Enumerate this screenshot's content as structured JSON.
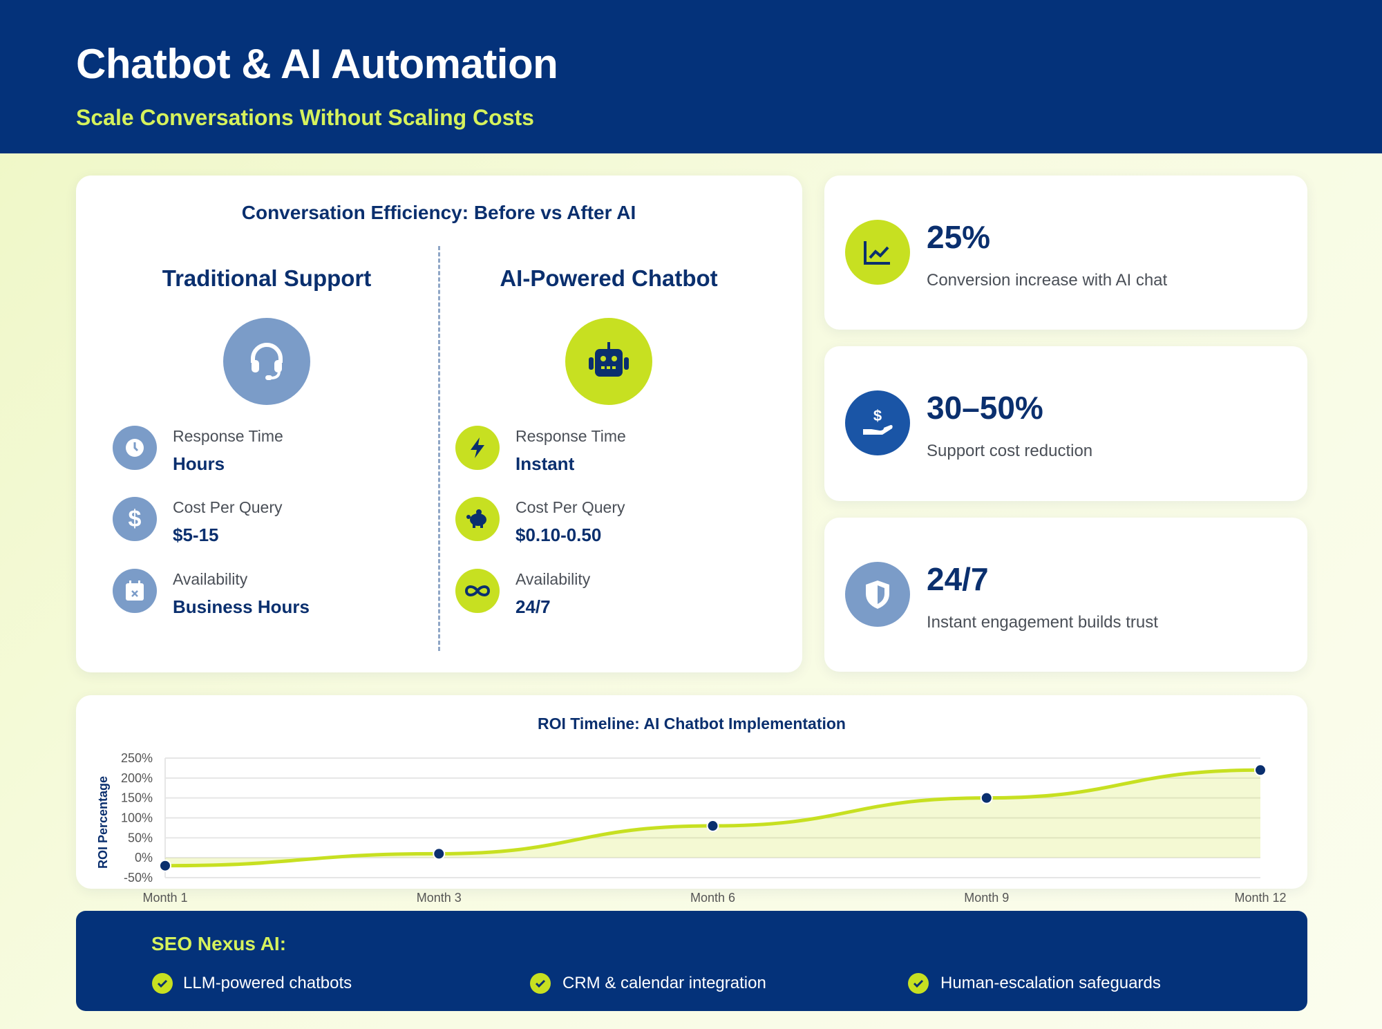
{
  "header": {
    "title": "Chatbot & AI Automation",
    "subtitle": "Scale Conversations Without Scaling Costs"
  },
  "comparison": {
    "title": "Conversation Efficiency: Before vs After AI",
    "traditional": {
      "heading": "Traditional Support",
      "icon": "headset-icon",
      "rows": [
        {
          "icon": "clock-icon",
          "label": "Response Time",
          "value": "Hours"
        },
        {
          "icon": "dollar-icon",
          "label": "Cost Per Query",
          "value": "$5-15"
        },
        {
          "icon": "calendar-x-icon",
          "label": "Availability",
          "value": "Business Hours"
        }
      ]
    },
    "ai": {
      "heading": "AI-Powered Chatbot",
      "icon": "robot-icon",
      "rows": [
        {
          "icon": "lightning-icon",
          "label": "Response Time",
          "value": "Instant"
        },
        {
          "icon": "piggy-bank-icon",
          "label": "Cost Per Query",
          "value": "$0.10-0.50"
        },
        {
          "icon": "infinity-icon",
          "label": "Availability",
          "value": "24/7"
        }
      ]
    }
  },
  "stats": [
    {
      "icon": "chart-line-icon",
      "value": "25%",
      "description": "Conversion increase with AI chat"
    },
    {
      "icon": "hand-dollar-icon",
      "value": "30–50%",
      "description": "Support cost reduction"
    },
    {
      "icon": "shield-icon",
      "value": "24/7",
      "description": "Instant engagement builds trust"
    }
  ],
  "colors": {
    "navy": "#04327a",
    "lime": "#c7e021",
    "steel_blue": "#7b9cc8"
  },
  "chart_data": {
    "type": "area",
    "title": "ROI Timeline: AI Chatbot Implementation",
    "xlabel": "",
    "ylabel": "ROI Percentage",
    "categories": [
      "Month 1",
      "Month 3",
      "Month 6",
      "Month 9",
      "Month 12"
    ],
    "values": [
      -20,
      10,
      80,
      150,
      220
    ],
    "ylim": [
      -50,
      250
    ],
    "yticks": [
      "250%",
      "200%",
      "150%",
      "100%",
      "50%",
      "0%",
      "-50%"
    ],
    "grid": true,
    "legend": "none"
  },
  "banner": {
    "heading": "SEO Nexus AI:",
    "items": [
      "LLM-powered chatbots",
      "CRM & calendar integration",
      "Human-escalation safeguards"
    ]
  }
}
